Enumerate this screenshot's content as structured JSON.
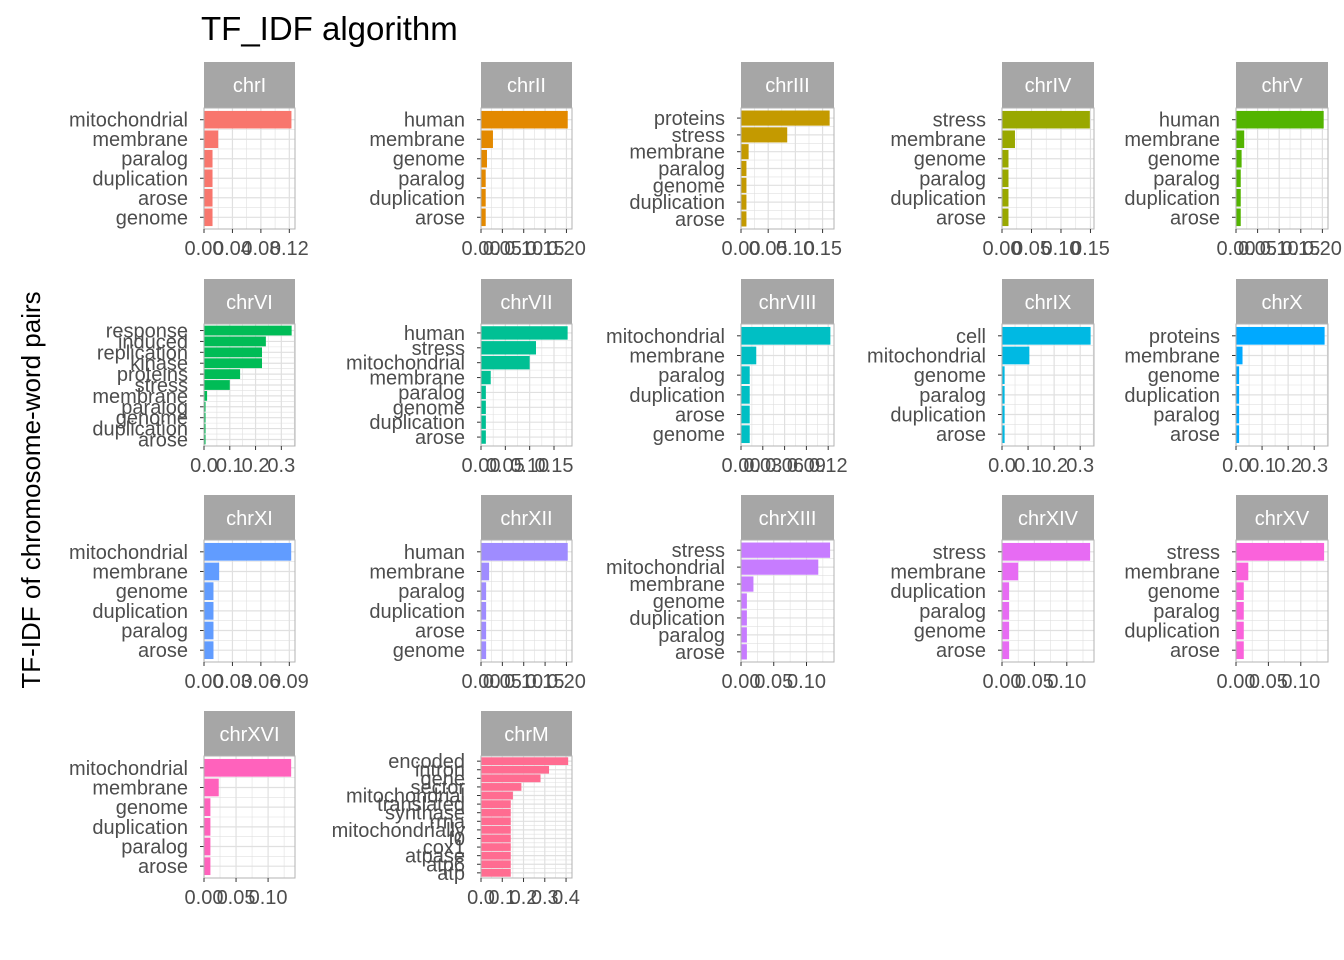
{
  "chart_data": {
    "type": "bar",
    "orientation": "horizontal",
    "title": "TF_IDF algorithm",
    "ylabel": "TF-IDF of chromosome-word pairs",
    "xlabel": "",
    "grid": true,
    "panels": [
      {
        "name": "chrI",
        "color": "#F8766D",
        "xlim": [
          0,
          0.128
        ],
        "ticks": [
          0.0,
          0.04,
          0.08,
          0.12
        ],
        "tick_labels": [
          "0.00",
          "0.04",
          "0.08",
          "0.12"
        ],
        "categories": [
          "mitochondrial",
          "membrane",
          "paralog",
          "duplication",
          "arose",
          "genome"
        ],
        "values": [
          0.123,
          0.02,
          0.012,
          0.012,
          0.012,
          0.012
        ]
      },
      {
        "name": "chrII",
        "color": "#E38900",
        "xlim": [
          0,
          0.213
        ],
        "ticks": [
          0.0,
          0.05,
          0.1,
          0.15,
          0.2
        ],
        "tick_labels": [
          "0.00",
          "0.05",
          "0.10",
          "0.15",
          "0.20"
        ],
        "categories": [
          "human",
          "membrane",
          "genome",
          "paralog",
          "duplication",
          "arose"
        ],
        "values": [
          0.203,
          0.028,
          0.014,
          0.011,
          0.011,
          0.011
        ]
      },
      {
        "name": "chrIII",
        "color": "#C49A00",
        "xlim": [
          0,
          0.171
        ],
        "ticks": [
          0.0,
          0.05,
          0.1,
          0.15
        ],
        "tick_labels": [
          "0.00",
          "0.05",
          "0.10",
          "0.15"
        ],
        "categories": [
          "proteins",
          "stress",
          "membrane",
          "paralog",
          "genome",
          "duplication",
          "arose"
        ],
        "values": [
          0.163,
          0.085,
          0.014,
          0.01,
          0.01,
          0.01,
          0.01
        ]
      },
      {
        "name": "chrIV",
        "color": "#99A800",
        "xlim": [
          0,
          0.156
        ],
        "ticks": [
          0.0,
          0.05,
          0.1,
          0.15
        ],
        "tick_labels": [
          "0.00",
          "0.05",
          "0.10",
          "0.15"
        ],
        "categories": [
          "stress",
          "membrane",
          "genome",
          "paralog",
          "duplication",
          "arose"
        ],
        "values": [
          0.149,
          0.022,
          0.011,
          0.011,
          0.011,
          0.011
        ]
      },
      {
        "name": "chrV",
        "color": "#53B400",
        "xlim": [
          0,
          0.213
        ],
        "ticks": [
          0.0,
          0.05,
          0.1,
          0.15,
          0.2
        ],
        "tick_labels": [
          "0.00",
          "0.05",
          "0.10",
          "0.15",
          "0.20"
        ],
        "categories": [
          "human",
          "membrane",
          "genome",
          "paralog",
          "duplication",
          "arose"
        ],
        "values": [
          0.203,
          0.019,
          0.013,
          0.011,
          0.011,
          0.011
        ]
      },
      {
        "name": "chrVI",
        "color": "#00BC56",
        "xlim": [
          0,
          0.353
        ],
        "ticks": [
          0.0,
          0.1,
          0.2,
          0.3
        ],
        "tick_labels": [
          "0.0",
          "0.1",
          "0.2",
          "0.3"
        ],
        "categories": [
          "response",
          "induced",
          "replication",
          "kinase",
          "proteins",
          "stress",
          "membrane",
          "paralog",
          "genome",
          "duplication",
          "arose"
        ],
        "values": [
          0.34,
          0.24,
          0.225,
          0.225,
          0.14,
          0.1,
          0.012,
          0.006,
          0.006,
          0.006,
          0.006
        ]
      },
      {
        "name": "chrVII",
        "color": "#00C094",
        "xlim": [
          0,
          0.187
        ],
        "ticks": [
          0.0,
          0.05,
          0.1,
          0.15
        ],
        "tick_labels": [
          "0.00",
          "0.05",
          "0.10",
          "0.15"
        ],
        "categories": [
          "human",
          "stress",
          "mitochondrial",
          "membrane",
          "paralog",
          "genome",
          "duplication",
          "arose"
        ],
        "values": [
          0.178,
          0.113,
          0.1,
          0.02,
          0.01,
          0.01,
          0.01,
          0.01
        ]
      },
      {
        "name": "chrVIII",
        "color": "#00BFC4",
        "xlim": [
          0,
          0.128
        ],
        "ticks": [
          0.0,
          0.03,
          0.06,
          0.09,
          0.12
        ],
        "tick_labels": [
          "0.00",
          "0.03",
          "0.06",
          "0.09",
          "0.12"
        ],
        "categories": [
          "mitochondrial",
          "membrane",
          "paralog",
          "duplication",
          "arose",
          "genome"
        ],
        "values": [
          0.123,
          0.021,
          0.012,
          0.012,
          0.012,
          0.012
        ]
      },
      {
        "name": "chrIX",
        "color": "#00B9E3",
        "xlim": [
          0,
          0.353
        ],
        "ticks": [
          0.0,
          0.1,
          0.2,
          0.3
        ],
        "tick_labels": [
          "0.0",
          "0.1",
          "0.2",
          "0.3"
        ],
        "categories": [
          "cell",
          "mitochondrial",
          "genome",
          "paralog",
          "duplication",
          "arose"
        ],
        "values": [
          0.34,
          0.105,
          0.01,
          0.01,
          0.01,
          0.01
        ]
      },
      {
        "name": "chrX",
        "color": "#00A9FF",
        "xlim": [
          0,
          0.353
        ],
        "ticks": [
          0.0,
          0.1,
          0.2,
          0.3
        ],
        "tick_labels": [
          "0.0",
          "0.1",
          "0.2",
          "0.3"
        ],
        "categories": [
          "proteins",
          "membrane",
          "genome",
          "duplication",
          "paralog",
          "arose"
        ],
        "values": [
          0.34,
          0.025,
          0.012,
          0.012,
          0.012,
          0.012
        ]
      },
      {
        "name": "chrXI",
        "color": "#619CFF",
        "xlim": [
          0,
          0.096
        ],
        "ticks": [
          0.0,
          0.03,
          0.06,
          0.09
        ],
        "tick_labels": [
          "0.00",
          "0.03",
          "0.06",
          "0.09"
        ],
        "categories": [
          "mitochondrial",
          "membrane",
          "genome",
          "duplication",
          "paralog",
          "arose"
        ],
        "values": [
          0.092,
          0.016,
          0.01,
          0.01,
          0.01,
          0.01
        ]
      },
      {
        "name": "chrXII",
        "color": "#9F8CFF",
        "xlim": [
          0,
          0.213
        ],
        "ticks": [
          0.0,
          0.05,
          0.1,
          0.15,
          0.2
        ],
        "tick_labels": [
          "0.00",
          "0.05",
          "0.10",
          "0.15",
          "0.20"
        ],
        "categories": [
          "human",
          "membrane",
          "paralog",
          "duplication",
          "arose",
          "genome"
        ],
        "values": [
          0.203,
          0.019,
          0.012,
          0.012,
          0.012,
          0.012
        ]
      },
      {
        "name": "chrXIII",
        "color": "#C77CFF",
        "xlim": [
          0,
          0.142
        ],
        "ticks": [
          0.0,
          0.05,
          0.1
        ],
        "tick_labels": [
          "0.00",
          "0.05",
          "0.10"
        ],
        "categories": [
          "stress",
          "mitochondrial",
          "membrane",
          "genome",
          "duplication",
          "paralog",
          "arose"
        ],
        "values": [
          0.136,
          0.118,
          0.019,
          0.009,
          0.009,
          0.009,
          0.009
        ]
      },
      {
        "name": "chrXIV",
        "color": "#E76BF3",
        "xlim": [
          0,
          0.142
        ],
        "ticks": [
          0.0,
          0.05,
          0.1
        ],
        "tick_labels": [
          "0.00",
          "0.05",
          "0.10"
        ],
        "categories": [
          "stress",
          "membrane",
          "duplication",
          "paralog",
          "genome",
          "arose"
        ],
        "values": [
          0.136,
          0.025,
          0.011,
          0.011,
          0.011,
          0.011
        ]
      },
      {
        "name": "chrXV",
        "color": "#FA62DB",
        "xlim": [
          0,
          0.142
        ],
        "ticks": [
          0.0,
          0.05,
          0.1
        ],
        "tick_labels": [
          "0.00",
          "0.05",
          "0.10"
        ],
        "categories": [
          "stress",
          "membrane",
          "genome",
          "paralog",
          "duplication",
          "arose"
        ],
        "values": [
          0.136,
          0.019,
          0.012,
          0.012,
          0.012,
          0.012
        ]
      },
      {
        "name": "chrXVI",
        "color": "#FF62BC",
        "xlim": [
          0,
          0.142
        ],
        "ticks": [
          0.0,
          0.05,
          0.1
        ],
        "tick_labels": [
          "0.00",
          "0.05",
          "0.10"
        ],
        "categories": [
          "mitochondrial",
          "membrane",
          "genome",
          "duplication",
          "paralog",
          "arose"
        ],
        "values": [
          0.136,
          0.023,
          0.01,
          0.01,
          0.01,
          0.01
        ]
      },
      {
        "name": "chrM",
        "color": "#FF6C91",
        "xlim": [
          0,
          0.428
        ],
        "ticks": [
          0.0,
          0.1,
          0.2,
          0.3,
          0.4
        ],
        "tick_labels": [
          "0.0",
          "0.1",
          "0.2",
          "0.3",
          "0.4"
        ],
        "categories": [
          "encoded",
          "intron",
          "gene",
          "sector",
          "mitochondrial",
          "translated",
          "synthase",
          "rrna",
          "mitochondrially",
          "f0",
          "cox1",
          "atpase",
          "atp6",
          "atp"
        ],
        "values": [
          0.41,
          0.32,
          0.28,
          0.19,
          0.15,
          0.14,
          0.14,
          0.14,
          0.14,
          0.14,
          0.14,
          0.14,
          0.14,
          0.14
        ]
      }
    ]
  }
}
